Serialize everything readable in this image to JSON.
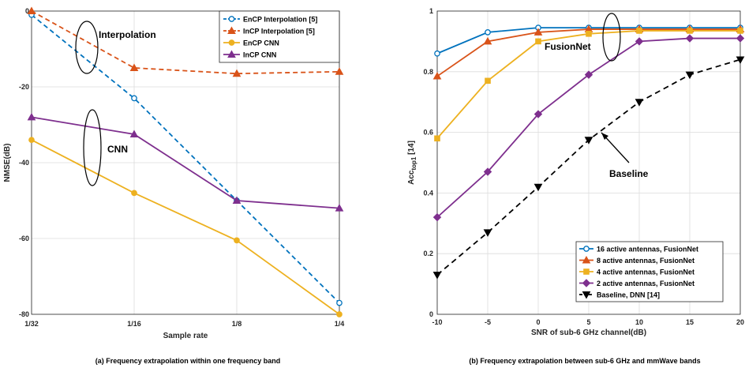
{
  "chart_data": [
    {
      "type": "line",
      "caption": "(a) Frequency extrapolation within one frequency band",
      "xlabel": "Sample rate",
      "ylabel": "NMSE(dB)",
      "categories": [
        "1/32",
        "1/16",
        "1/8",
        "1/4"
      ],
      "ylim": [
        -80,
        0
      ],
      "yticks": [
        0,
        -20,
        -40,
        -60,
        -80
      ],
      "grid": true,
      "legend_position": "top-right",
      "series": [
        {
          "name": "EnCP Interpolation [5]",
          "values": [
            -1,
            -23,
            -50,
            -77
          ],
          "color": "#0072BD",
          "dash": true,
          "marker": "circle"
        },
        {
          "name": "InCP Interpolation [5]",
          "values": [
            0,
            -15,
            -16.5,
            -16
          ],
          "color": "#D95319",
          "dash": true,
          "marker": "triangle-up"
        },
        {
          "name": "EnCP CNN",
          "values": [
            -34,
            -48,
            -60.5,
            -80
          ],
          "color": "#EDB120",
          "dash": false,
          "marker": "circle"
        },
        {
          "name": "InCP CNN",
          "values": [
            -28,
            -32.5,
            -50,
            -52
          ],
          "color": "#7E2F8E",
          "dash": false,
          "marker": "triangle-up"
        }
      ],
      "annotations": [
        {
          "text": "Interpolation",
          "x": 0.55,
          "y": -6
        },
        {
          "text": "CNN",
          "x": 1.05,
          "y": -37
        }
      ]
    },
    {
      "type": "line",
      "caption": "(b) Frequency extrapolation between sub-6 GHz and mmWave bands",
      "xlabel": "SNR of sub-6 GHz channel(dB)",
      "ylabel_main": "Acc",
      "ylabel_sub": "top1",
      "ylabel_suffix": " [14]",
      "x": [
        -10,
        -5,
        0,
        5,
        10,
        15,
        20
      ],
      "xlim": [
        -10,
        20
      ],
      "ylim": [
        0,
        1
      ],
      "xticks": [
        -10,
        -5,
        0,
        5,
        10,
        15,
        20
      ],
      "yticks": [
        0,
        0.2,
        0.4,
        0.6,
        0.8,
        1
      ],
      "grid": true,
      "legend_position": "bottom-right",
      "series": [
        {
          "name": "16 active antennas, FusionNet",
          "values": [
            0.86,
            0.93,
            0.945,
            0.945,
            0.945,
            0.945,
            0.945
          ],
          "color": "#0072BD",
          "dash": false,
          "marker": "circle"
        },
        {
          "name": "8 active antennas, FusionNet",
          "values": [
            0.785,
            0.9,
            0.93,
            0.94,
            0.94,
            0.94,
            0.94
          ],
          "color": "#D95319",
          "dash": false,
          "marker": "triangle-up"
        },
        {
          "name": "4 active antennas, FusionNet",
          "values": [
            0.58,
            0.77,
            0.9,
            0.925,
            0.935,
            0.935,
            0.935
          ],
          "color": "#EDB120",
          "dash": false,
          "marker": "square"
        },
        {
          "name": "2 active antennas, FusionNet",
          "values": [
            0.32,
            0.47,
            0.66,
            0.79,
            0.9,
            0.91,
            0.91
          ],
          "color": "#7E2F8E",
          "dash": false,
          "marker": "diamond"
        },
        {
          "name": "Baseline, DNN [14]",
          "values": [
            0.13,
            0.27,
            0.42,
            0.575,
            0.7,
            0.79,
            0.84
          ],
          "color": "#000000",
          "dash": true,
          "marker": "triangle-down"
        }
      ],
      "annotations": [
        {
          "text": "FusionNet",
          "x": 7.8,
          "y": 0.875
        },
        {
          "text": "Baseline",
          "x": 11.5,
          "y": 0.465
        }
      ]
    }
  ]
}
